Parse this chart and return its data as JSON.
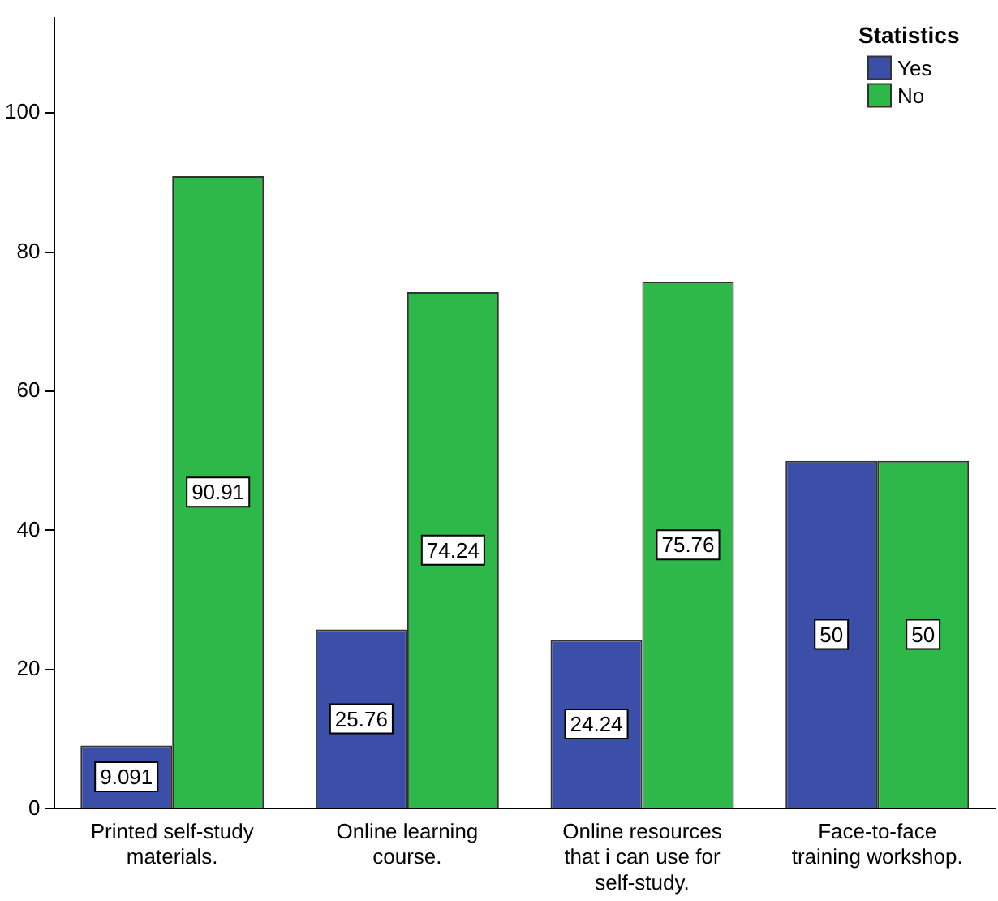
{
  "chart_data": {
    "type": "bar",
    "legend_title": "Statistics",
    "categories": [
      "Printed self-study materials.",
      "Online learning course.",
      "Online resources that i can use for self-study.",
      "Face-to-face training workshop."
    ],
    "series": [
      {
        "name": "Yes",
        "color": "#3c4fa8",
        "values": [
          9.091,
          25.76,
          24.24,
          50
        ]
      },
      {
        "name": "No",
        "color": "#2fb84a",
        "values": [
          90.91,
          74.24,
          75.76,
          50
        ]
      }
    ],
    "ylim": [
      0,
      113.7
    ],
    "yticks": [
      0,
      20,
      40,
      60,
      80,
      100
    ],
    "grid": false,
    "legend": "top right",
    "data_labels": true
  }
}
